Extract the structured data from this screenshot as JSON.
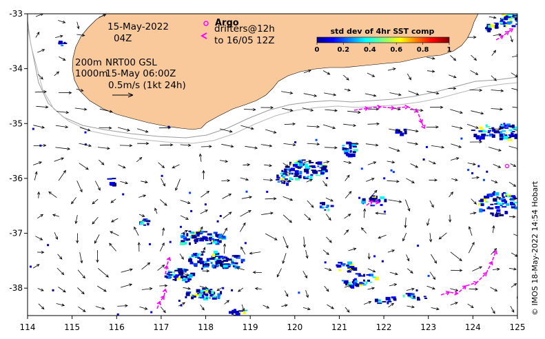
{
  "map": {
    "lon_range": [
      114,
      125
    ],
    "lat_range": [
      -38.5,
      -33
    ],
    "x_ticks": [
      "114",
      "115",
      "116",
      "117",
      "118",
      "119",
      "120",
      "121",
      "122",
      "123",
      "124",
      "125"
    ],
    "y_ticks": [
      "-33",
      "-34",
      "-35",
      "-36",
      "-37",
      "-38"
    ],
    "land_color": "#f9c99b",
    "gap_color": "#9aa0b8"
  },
  "labels": {
    "date": "15-May-2022",
    "hour": "04Z",
    "depth_200": "200m",
    "depth_1000": "1000m",
    "product": "NRT00 GSL",
    "product_time": "15-May 06:00Z",
    "speed_scale": "0.5m/s (1kt 24h)"
  },
  "argo": {
    "title": "Argo",
    "drifters_line1": "drifters@12h",
    "drifters_line2": "to 16/05 12Z",
    "color": "#ff00ff"
  },
  "colorbar": {
    "title": "std dev of 4hr SST comp",
    "ticks": [
      "0",
      "0.2",
      "0.4",
      "0.6",
      "0.8",
      "1"
    ]
  },
  "credit": "© IMOS 18-May-2022 14:54 Hobart"
}
